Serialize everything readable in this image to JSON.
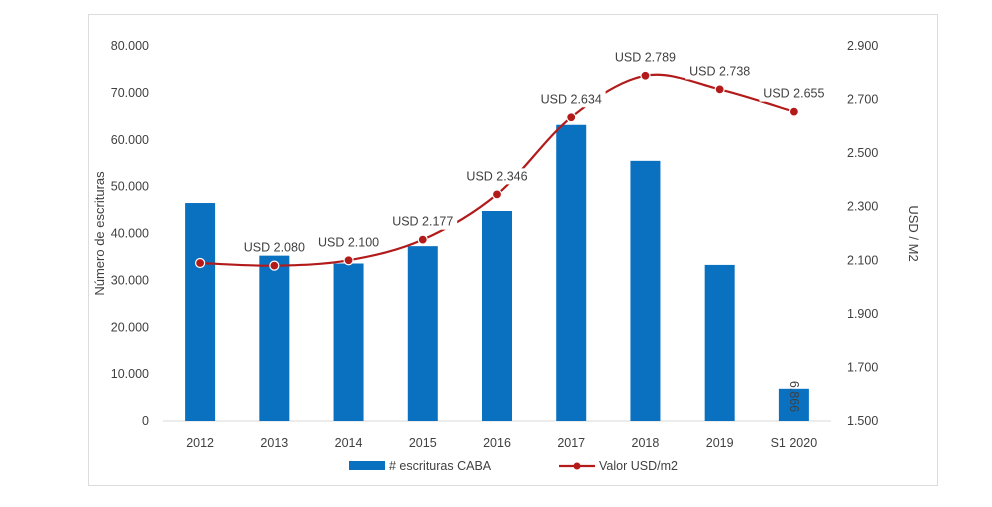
{
  "chart_data": {
    "type": "bar+line",
    "categories": [
      "2012",
      "2013",
      "2014",
      "2015",
      "2016",
      "2017",
      "2018",
      "2019",
      "S1 2020"
    ],
    "series": [
      {
        "name": "# escrituras CABA",
        "type": "bar",
        "axis": "left",
        "color": "#0a70c0",
        "values": [
          46500,
          36000,
          33600,
          37300,
          44800,
          63200,
          55500,
          33300,
          6866
        ]
      },
      {
        "name": "Valor USD/m2",
        "type": "line",
        "axis": "right",
        "color": "#b31b1b",
        "values": [
          2090,
          2080,
          2100,
          2177,
          2346,
          2634,
          2789,
          2738,
          2655
        ]
      }
    ],
    "bar_data_labels": [
      {
        "index": 8,
        "text": "6.866"
      }
    ],
    "line_data_labels": [
      {
        "index": 1,
        "text": "USD 2.080"
      },
      {
        "index": 2,
        "text": "USD 2.100"
      },
      {
        "index": 3,
        "text": "USD 2.177"
      },
      {
        "index": 4,
        "text": "USD 2.346"
      },
      {
        "index": 5,
        "text": "USD 2.634"
      },
      {
        "index": 6,
        "text": "USD 2.789"
      },
      {
        "index": 7,
        "text": "USD 2.738"
      },
      {
        "index": 8,
        "text": "USD 2.655"
      }
    ],
    "left_axis": {
      "label": "Número de escrituras",
      "ylim": [
        0,
        80000
      ],
      "ticks": [
        0,
        10000,
        20000,
        30000,
        40000,
        50000,
        60000,
        70000,
        80000
      ],
      "tick_labels": [
        "0",
        "10.000",
        "20.000",
        "30.000",
        "40.000",
        "50.000",
        "60.000",
        "70.000",
        "80.000"
      ]
    },
    "right_axis": {
      "label": "USD / M2",
      "ylim": [
        1500,
        2900
      ],
      "ticks": [
        1500,
        1700,
        1900,
        2100,
        2300,
        2500,
        2700,
        2900
      ],
      "tick_labels": [
        "1.500",
        "1.700",
        "1.900",
        "2.100",
        "2.300",
        "2.500",
        "2.700",
        "2.900"
      ]
    },
    "grid": false,
    "legend": {
      "placement": "bottom",
      "entries": [
        "# escrituras CABA",
        "Valor USD/m2"
      ]
    }
  }
}
